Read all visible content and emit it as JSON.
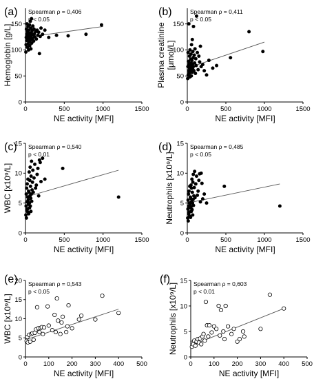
{
  "chart_data": [
    {
      "type": "scatter",
      "panel_label": "(a)",
      "stat_label": "Spearman ρ = 0,406",
      "p_label": "p < 0.05",
      "xlabel": "NE activity [MFI]",
      "ylabel": "Hemoglobin [g/L]",
      "xlim": [
        0,
        1500
      ],
      "ylim": [
        0,
        180
      ],
      "xticks": [
        0,
        500,
        1000,
        1500
      ],
      "yticks": [
        0,
        50,
        100,
        150
      ],
      "marker": "filled",
      "fit_line": [
        [
          0,
          124
        ],
        [
          1000,
          145
        ]
      ],
      "points": [
        [
          5,
          96
        ],
        [
          8,
          110
        ],
        [
          10,
          124
        ],
        [
          12,
          140
        ],
        [
          15,
          118
        ],
        [
          18,
          130
        ],
        [
          20,
          150
        ],
        [
          22,
          127
        ],
        [
          25,
          105
        ],
        [
          28,
          135
        ],
        [
          30,
          120
        ],
        [
          32,
          145
        ],
        [
          35,
          112
        ],
        [
          38,
          128
        ],
        [
          40,
          100
        ],
        [
          42,
          138
        ],
        [
          45,
          125
        ],
        [
          48,
          132
        ],
        [
          50,
          116
        ],
        [
          52,
          148
        ],
        [
          55,
          108
        ],
        [
          58,
          131
        ],
        [
          60,
          123
        ],
        [
          62,
          155
        ],
        [
          65,
          119
        ],
        [
          68,
          142
        ],
        [
          70,
          102
        ],
        [
          72,
          127
        ],
        [
          75,
          133
        ],
        [
          78,
          160
        ],
        [
          80,
          113
        ],
        [
          85,
          137
        ],
        [
          90,
          122
        ],
        [
          95,
          146
        ],
        [
          100,
          129
        ],
        [
          105,
          117
        ],
        [
          110,
          140
        ],
        [
          115,
          131
        ],
        [
          120,
          125
        ],
        [
          130,
          135
        ],
        [
          140,
          121
        ],
        [
          150,
          138
        ],
        [
          160,
          128
        ],
        [
          170,
          134
        ],
        [
          180,
          93
        ],
        [
          190,
          126
        ],
        [
          200,
          142
        ],
        [
          220,
          130
        ],
        [
          250,
          138
        ],
        [
          300,
          124
        ],
        [
          400,
          128
        ],
        [
          550,
          127
        ],
        [
          780,
          130
        ],
        [
          980,
          148
        ]
      ]
    },
    {
      "type": "scatter",
      "panel_label": "(b)",
      "stat_label": "Spearman ρ = 0,411",
      "p_label": "p < 0.05",
      "xlabel": "NE activity [MFI]",
      "ylabel_line1": "Plasma creatinine",
      "ylabel_line2": "[μmol/L]",
      "xlim": [
        0,
        1500
      ],
      "ylim": [
        0,
        180
      ],
      "xticks": [
        0,
        500,
        1000,
        1500
      ],
      "yticks": [
        0,
        50,
        100,
        150
      ],
      "marker": "filled",
      "fit_line": [
        [
          0,
          65
        ],
        [
          1000,
          115
        ]
      ],
      "points": [
        [
          5,
          45
        ],
        [
          8,
          68
        ],
        [
          10,
          95
        ],
        [
          12,
          52
        ],
        [
          15,
          78
        ],
        [
          18,
          60
        ],
        [
          20,
          150
        ],
        [
          22,
          72
        ],
        [
          25,
          55
        ],
        [
          28,
          88
        ],
        [
          30,
          65
        ],
        [
          32,
          48
        ],
        [
          35,
          100
        ],
        [
          38,
          70
        ],
        [
          40,
          58
        ],
        [
          42,
          82
        ],
        [
          45,
          62
        ],
        [
          48,
          92
        ],
        [
          50,
          75
        ],
        [
          52,
          50
        ],
        [
          55,
          110
        ],
        [
          58,
          67
        ],
        [
          60,
          80
        ],
        [
          62,
          57
        ],
        [
          65,
          120
        ],
        [
          68,
          73
        ],
        [
          70,
          63
        ],
        [
          72,
          97
        ],
        [
          75,
          85
        ],
        [
          78,
          68
        ],
        [
          80,
          145
        ],
        [
          85,
          60
        ],
        [
          90,
          90
        ],
        [
          95,
          75
        ],
        [
          100,
          102
        ],
        [
          105,
          55
        ],
        [
          110,
          83
        ],
        [
          115,
          70
        ],
        [
          120,
          165
        ],
        [
          130,
          95
        ],
        [
          140,
          62
        ],
        [
          150,
          88
        ],
        [
          160,
          77
        ],
        [
          170,
          107
        ],
        [
          180,
          68
        ],
        [
          200,
          72
        ],
        [
          220,
          60
        ],
        [
          250,
          52
        ],
        [
          280,
          80
        ],
        [
          330,
          65
        ],
        [
          380,
          70
        ],
        [
          560,
          85
        ],
        [
          800,
          135
        ],
        [
          980,
          97
        ]
      ]
    },
    {
      "type": "scatter",
      "panel_label": "(c)",
      "stat_label": "Spearman ρ = 0,540",
      "p_label": "p < 0.01",
      "xlabel": "NE activity [MFI]",
      "ylabel": "WBC [x10⁹/L]",
      "xlim": [
        0,
        1500
      ],
      "ylim": [
        0,
        15
      ],
      "xticks": [
        0,
        500,
        1000,
        1500
      ],
      "yticks": [
        0,
        5,
        10,
        15
      ],
      "marker": "filled",
      "fit_line": [
        [
          0,
          6.0
        ],
        [
          1200,
          10.5
        ]
      ],
      "points": [
        [
          5,
          3.0
        ],
        [
          8,
          4.5
        ],
        [
          10,
          6.5
        ],
        [
          12,
          2.5
        ],
        [
          15,
          7.5
        ],
        [
          18,
          3.8
        ],
        [
          20,
          5.2
        ],
        [
          22,
          8.2
        ],
        [
          25,
          4.0
        ],
        [
          28,
          6.0
        ],
        [
          30,
          3.5
        ],
        [
          32,
          9.0
        ],
        [
          35,
          5.5
        ],
        [
          38,
          4.8
        ],
        [
          40,
          7.0
        ],
        [
          42,
          3.2
        ],
        [
          45,
          6.8
        ],
        [
          48,
          10.2
        ],
        [
          50,
          5.0
        ],
        [
          52,
          4.2
        ],
        [
          55,
          8.8
        ],
        [
          58,
          6.2
        ],
        [
          60,
          11.0
        ],
        [
          62,
          4.5
        ],
        [
          65,
          7.8
        ],
        [
          68,
          5.8
        ],
        [
          70,
          3.6
        ],
        [
          72,
          9.5
        ],
        [
          75,
          6.5
        ],
        [
          78,
          12.0
        ],
        [
          80,
          5.3
        ],
        [
          85,
          7.2
        ],
        [
          90,
          8.5
        ],
        [
          95,
          10.5
        ],
        [
          100,
          6.8
        ],
        [
          110,
          9.2
        ],
        [
          120,
          11.5
        ],
        [
          130,
          7.5
        ],
        [
          140,
          8.0
        ],
        [
          150,
          9.8
        ],
        [
          160,
          10.8
        ],
        [
          170,
          6.2
        ],
        [
          180,
          12.2
        ],
        [
          190,
          11.8
        ],
        [
          200,
          8.6
        ],
        [
          220,
          12.5
        ],
        [
          250,
          9.0
        ],
        [
          480,
          10.8
        ],
        [
          1200,
          6.0
        ]
      ]
    },
    {
      "type": "scatter",
      "panel_label": "(d)",
      "stat_label": "Spearman ρ = 0,485",
      "p_label": "p < 0.05",
      "xlabel": "NE activity [MFI]",
      "ylabel": "Neutrophils [x10⁹/L]",
      "xlim": [
        0,
        1500
      ],
      "ylim": [
        0,
        15
      ],
      "xticks": [
        0,
        500,
        1000,
        1500
      ],
      "yticks": [
        0,
        5,
        10,
        15
      ],
      "marker": "filled",
      "fit_line": [
        [
          0,
          5.0
        ],
        [
          1200,
          8.2
        ]
      ],
      "points": [
        [
          5,
          2.5
        ],
        [
          8,
          4.0
        ],
        [
          10,
          5.5
        ],
        [
          12,
          2.0
        ],
        [
          15,
          6.5
        ],
        [
          18,
          3.2
        ],
        [
          20,
          4.5
        ],
        [
          22,
          7.0
        ],
        [
          25,
          3.5
        ],
        [
          28,
          5.0
        ],
        [
          30,
          2.8
        ],
        [
          32,
          7.8
        ],
        [
          35,
          4.8
        ],
        [
          38,
          4.2
        ],
        [
          40,
          6.0
        ],
        [
          42,
          2.6
        ],
        [
          45,
          5.8
        ],
        [
          48,
          8.0
        ],
        [
          50,
          4.4
        ],
        [
          52,
          3.6
        ],
        [
          55,
          7.5
        ],
        [
          58,
          5.3
        ],
        [
          60,
          9.0
        ],
        [
          62,
          3.9
        ],
        [
          65,
          6.8
        ],
        [
          68,
          5.0
        ],
        [
          70,
          3.0
        ],
        [
          72,
          8.5
        ],
        [
          75,
          5.6
        ],
        [
          78,
          9.8
        ],
        [
          80,
          4.6
        ],
        [
          85,
          6.2
        ],
        [
          90,
          7.6
        ],
        [
          95,
          10.3
        ],
        [
          100,
          5.9
        ],
        [
          110,
          8.2
        ],
        [
          120,
          9.5
        ],
        [
          130,
          6.3
        ],
        [
          140,
          7.0
        ],
        [
          150,
          8.8
        ],
        [
          160,
          9.9
        ],
        [
          170,
          5.2
        ],
        [
          180,
          10.0
        ],
        [
          190,
          8.3
        ],
        [
          200,
          5.7
        ],
        [
          220,
          6.5
        ],
        [
          250,
          5.0
        ],
        [
          480,
          7.8
        ],
        [
          1200,
          4.5
        ]
      ]
    },
    {
      "type": "scatter",
      "panel_label": "(e)",
      "stat_label": "Spearman ρ = 0,543",
      "p_label": "p < 0.05",
      "xlabel": "NE activity [MFI]",
      "ylabel": "WBC [x10⁹/L]",
      "xlim": [
        0,
        500
      ],
      "ylim": [
        0,
        20
      ],
      "xticks": [
        0,
        100,
        200,
        300,
        400,
        500
      ],
      "yticks": [
        0,
        5,
        10,
        15,
        20
      ],
      "marker": "open",
      "fit_line": [
        [
          0,
          4.5
        ],
        [
          400,
          12.5
        ]
      ],
      "points": [
        [
          5,
          4.2
        ],
        [
          8,
          5.2
        ],
        [
          10,
          3.8
        ],
        [
          15,
          5.8
        ],
        [
          20,
          4.0
        ],
        [
          25,
          6.0
        ],
        [
          30,
          6.2
        ],
        [
          35,
          4.5
        ],
        [
          40,
          6.3
        ],
        [
          45,
          7.2
        ],
        [
          50,
          13.0
        ],
        [
          55,
          7.5
        ],
        [
          60,
          6.5
        ],
        [
          65,
          7.6
        ],
        [
          70,
          7.8
        ],
        [
          75,
          6.0
        ],
        [
          80,
          7.7
        ],
        [
          95,
          13.2
        ],
        [
          100,
          8.2
        ],
        [
          115,
          7.0
        ],
        [
          125,
          11.0
        ],
        [
          130,
          6.5
        ],
        [
          135,
          15.3
        ],
        [
          140,
          9.5
        ],
        [
          150,
          6.0
        ],
        [
          155,
          9.0
        ],
        [
          160,
          10.5
        ],
        [
          175,
          6.5
        ],
        [
          180,
          8.0
        ],
        [
          185,
          13.5
        ],
        [
          200,
          7.5
        ],
        [
          230,
          9.8
        ],
        [
          240,
          10.8
        ],
        [
          300,
          9.8
        ],
        [
          330,
          16.0
        ],
        [
          400,
          11.5
        ]
      ]
    },
    {
      "type": "scatter",
      "panel_label": "(f)",
      "stat_label": "Spearman ρ = 0,603",
      "p_label": "p < 0.01",
      "xlabel": "NE activity [MFI]",
      "ylabel": "Neutrophils [x10⁹/L]",
      "xlim": [
        0,
        500
      ],
      "ylim": [
        0,
        15
      ],
      "xticks": [
        0,
        100,
        200,
        300,
        400,
        500
      ],
      "yticks": [
        0,
        5,
        10,
        15
      ],
      "marker": "open",
      "fit_line": [
        [
          0,
          2.2
        ],
        [
          400,
          9.5
        ]
      ],
      "points": [
        [
          5,
          2.0
        ],
        [
          8,
          2.8
        ],
        [
          10,
          2.5
        ],
        [
          15,
          3.2
        ],
        [
          20,
          2.2
        ],
        [
          25,
          3.0
        ],
        [
          30,
          3.5
        ],
        [
          35,
          2.8
        ],
        [
          40,
          3.6
        ],
        [
          45,
          2.5
        ],
        [
          50,
          4.0
        ],
        [
          55,
          4.5
        ],
        [
          60,
          3.2
        ],
        [
          65,
          10.8
        ],
        [
          70,
          6.2
        ],
        [
          75,
          4.0
        ],
        [
          80,
          6.2
        ],
        [
          90,
          4.8
        ],
        [
          100,
          6.0
        ],
        [
          110,
          5.5
        ],
        [
          120,
          10.0
        ],
        [
          125,
          4.2
        ],
        [
          130,
          9.2
        ],
        [
          140,
          5.0
        ],
        [
          145,
          3.5
        ],
        [
          150,
          10.0
        ],
        [
          160,
          6.0
        ],
        [
          175,
          4.5
        ],
        [
          185,
          5.5
        ],
        [
          200,
          3.0
        ],
        [
          210,
          3.5
        ],
        [
          225,
          5.0
        ],
        [
          230,
          4.0
        ],
        [
          300,
          5.5
        ],
        [
          340,
          12.2
        ],
        [
          400,
          9.5
        ]
      ]
    }
  ]
}
